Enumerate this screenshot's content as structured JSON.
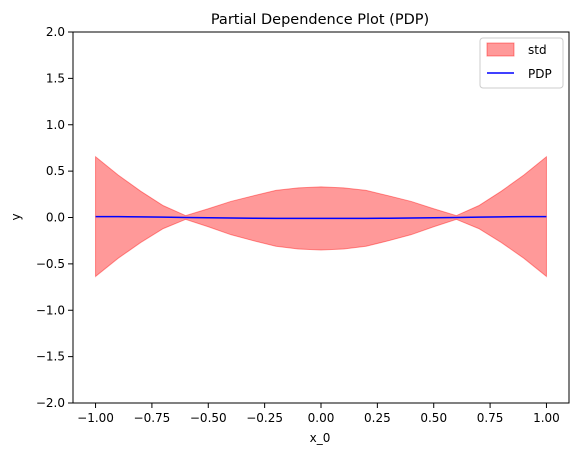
{
  "chart_data": {
    "type": "line",
    "title": "Partial Dependence Plot (PDP)",
    "xlabel": "x_0",
    "ylabel": "y",
    "xlim": [
      -1.1,
      1.1
    ],
    "ylim": [
      -2.0,
      2.0
    ],
    "xticks": [
      -1.0,
      -0.75,
      -0.5,
      -0.25,
      0.0,
      0.25,
      0.5,
      0.75,
      1.0
    ],
    "xtick_labels": [
      "−1.00",
      "−0.75",
      "−0.50",
      "−0.25",
      "0.00",
      "0.25",
      "0.50",
      "0.75",
      "1.00"
    ],
    "yticks": [
      -2.0,
      -1.5,
      -1.0,
      -0.5,
      0.0,
      0.5,
      1.0,
      1.5,
      2.0
    ],
    "ytick_labels": [
      "−2.0",
      "−1.5",
      "−1.0",
      "−0.5",
      "0.0",
      "0.5",
      "1.0",
      "1.5",
      "2.0"
    ],
    "grid": false,
    "legend_position": "upper-right",
    "x": [
      -1.0,
      -0.9,
      -0.8,
      -0.7,
      -0.6,
      -0.5,
      -0.4,
      -0.3,
      -0.2,
      -0.1,
      0.0,
      0.1,
      0.2,
      0.3,
      0.4,
      0.5,
      0.6,
      0.7,
      0.8,
      0.9,
      1.0
    ],
    "series": [
      {
        "name": "PDP",
        "kind": "line",
        "color": "#0000ff",
        "values": [
          0.01,
          0.009,
          0.007,
          0.004,
          0.0,
          -0.003,
          -0.006,
          -0.008,
          -0.009,
          -0.01,
          -0.01,
          -0.01,
          -0.009,
          -0.008,
          -0.006,
          -0.003,
          0.0,
          0.004,
          0.007,
          0.009,
          0.01
        ]
      },
      {
        "name": "std",
        "kind": "band",
        "color": "#ff0000",
        "opacity": 0.4,
        "lower": [
          -0.635,
          -0.44,
          -0.27,
          -0.12,
          -0.02,
          -0.1,
          -0.185,
          -0.25,
          -0.31,
          -0.34,
          -0.35,
          -0.34,
          -0.31,
          -0.25,
          -0.185,
          -0.1,
          -0.02,
          -0.12,
          -0.27,
          -0.44,
          -0.635
        ],
        "upper": [
          0.655,
          0.458,
          0.284,
          0.128,
          0.02,
          0.094,
          0.173,
          0.234,
          0.292,
          0.32,
          0.33,
          0.32,
          0.292,
          0.234,
          0.173,
          0.094,
          0.02,
          0.128,
          0.284,
          0.458,
          0.655
        ]
      }
    ]
  }
}
